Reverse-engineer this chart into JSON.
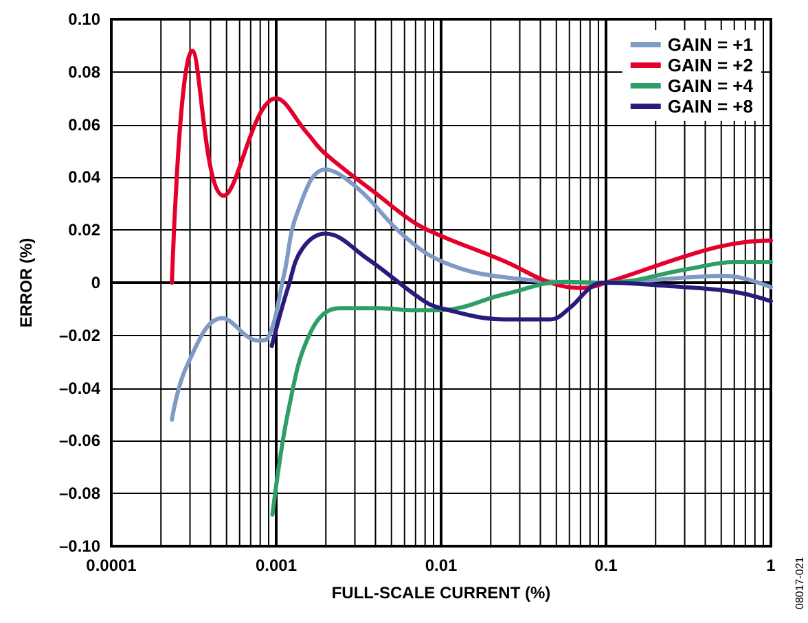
{
  "chart_data": {
    "type": "line",
    "xlabel": "FULL-SCALE CURRENT (%)",
    "ylabel": "ERROR (%)",
    "annotations": [
      "08017-021"
    ],
    "log": "x",
    "grid": true,
    "legend": "top right",
    "marker": "none",
    "line_style": "solid",
    "xlim": [
      0.0001,
      1
    ],
    "xticks": [
      0.0001,
      0.001,
      0.01,
      0.1,
      1
    ],
    "ylim": [
      -0.1,
      0.1
    ],
    "yticks": [
      {
        "value": -0.1,
        "label": "–0.10"
      },
      {
        "value": -0.08,
        "label": "–0.08"
      },
      {
        "value": -0.06,
        "label": "–0.06"
      },
      {
        "value": -0.04,
        "label": "–0.04"
      },
      {
        "value": -0.02,
        "label": "–0.02"
      },
      {
        "value": 0,
        "label": "0"
      },
      {
        "value": 0.02,
        "label": "0.02"
      },
      {
        "value": 0.04,
        "label": "0.04"
      },
      {
        "value": 0.06,
        "label": "0.06"
      },
      {
        "value": 0.08,
        "label": "0.08"
      },
      {
        "value": 0.1,
        "label": "0.10"
      }
    ],
    "series": [
      {
        "name": "GAIN = +1",
        "color": "#7f9ac4",
        "x": [
          0.000233,
          0.00029,
          0.00047,
          0.00078,
          0.00089,
          0.00111,
          0.00135,
          0.00198,
          0.0031,
          0.0059,
          0.0105,
          0.0245,
          0.1,
          0.316,
          0.527,
          1
        ],
        "values": [
          -0.052,
          -0.031,
          -0.0135,
          -0.022,
          -0.021,
          0.0024,
          0.027,
          0.043,
          0.036,
          0.018,
          0.0076,
          0.002,
          0,
          0.002,
          0.0026,
          -0.0017
        ]
      },
      {
        "name": "GAIN = +2",
        "color": "#e4002b",
        "x": [
          0.000233,
          0.00031,
          0.00048,
          0.001,
          0.00153,
          0.00198,
          0.004,
          0.0068,
          0.0098,
          0.0245,
          0.046,
          0.073,
          0.1,
          0.316,
          0.6,
          1
        ],
        "values": [
          0,
          0.088,
          0.033,
          0.07,
          0.057,
          0.049,
          0.034,
          0.023,
          0.018,
          0.008,
          0,
          -0.002,
          0,
          0.0104,
          0.0148,
          0.016
        ]
      },
      {
        "name": "GAIN = +4",
        "color": "#2e9e66",
        "x": [
          0.00095,
          0.00119,
          0.00164,
          0.0024,
          0.0043,
          0.0068,
          0.01,
          0.0245,
          0.056,
          0.1,
          0.316,
          0.6,
          1
        ],
        "values": [
          -0.088,
          -0.048,
          -0.018,
          -0.0097,
          -0.0097,
          -0.0105,
          -0.0104,
          -0.0043,
          0.0003,
          0,
          0.0052,
          0.0078,
          0.0078
        ]
      },
      {
        "name": "GAIN = +8",
        "color": "#2a1a7c",
        "x": [
          0.00094,
          0.00119,
          0.00144,
          0.00198,
          0.00352,
          0.0076,
          0.01,
          0.0245,
          0.046,
          0.06,
          0.083,
          0.1,
          0.23,
          0.6,
          1
        ],
        "values": [
          -0.024,
          -0.001,
          0.0129,
          0.0186,
          0.0094,
          -0.0063,
          -0.0097,
          -0.0139,
          -0.0139,
          -0.0097,
          -0.0012,
          0,
          -0.0012,
          -0.0035,
          -0.007
        ]
      }
    ]
  }
}
